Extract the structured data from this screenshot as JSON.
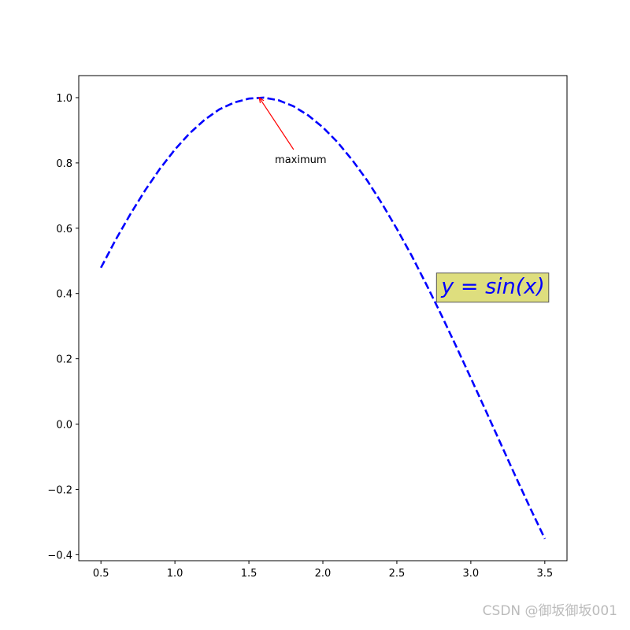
{
  "chart_data": {
    "type": "line",
    "x": [
      0.5,
      0.6,
      0.7,
      0.8,
      0.9,
      1.0,
      1.1,
      1.2,
      1.3,
      1.4,
      1.5,
      1.6,
      1.7,
      1.8,
      1.9,
      2.0,
      2.1,
      2.2,
      2.3,
      2.4,
      2.5,
      2.6,
      2.7,
      2.8,
      2.9,
      3.0,
      3.1,
      3.2,
      3.3,
      3.4,
      3.5
    ],
    "values": [
      0.479,
      0.565,
      0.644,
      0.717,
      0.783,
      0.841,
      0.891,
      0.932,
      0.964,
      0.985,
      0.997,
      1.0,
      0.992,
      0.974,
      0.946,
      0.909,
      0.863,
      0.808,
      0.746,
      0.675,
      0.598,
      0.516,
      0.427,
      0.335,
      0.239,
      0.141,
      0.042,
      -0.058,
      -0.158,
      -0.256,
      -0.351
    ],
    "color": "#0000ff",
    "line_style": "dashed",
    "xlim": [
      0.35,
      3.65
    ],
    "ylim": [
      -0.4185,
      1.0675
    ],
    "xticks": [
      0.5,
      {
        "value": 1.0,
        "label": "1.0"
      },
      1.5,
      {
        "value": 2.0,
        "label": "2.0"
      },
      2.5,
      {
        "value": 3.0,
        "label": "3.0"
      },
      3.5
    ],
    "yticks": [
      {
        "value": -0.4,
        "label": "−0.4"
      },
      {
        "value": -0.2,
        "label": "−0.2"
      },
      {
        "value": 0.0,
        "label": "0.0"
      },
      0.2,
      0.4,
      0.6,
      0.8,
      {
        "value": 1.0,
        "label": "1.0"
      }
    ],
    "annotation": {
      "text": "maximum",
      "xy": [
        1.57,
        1.0
      ],
      "xytext": [
        1.85,
        0.8
      ],
      "arrow_color": "#ff0000"
    },
    "formula_box": {
      "text": "y = sin(x)",
      "position": [
        2.8,
        0.4
      ],
      "color": "#0000ff",
      "box_color": "#dede7e"
    },
    "watermark": "CSDN @御坂御坂001"
  }
}
